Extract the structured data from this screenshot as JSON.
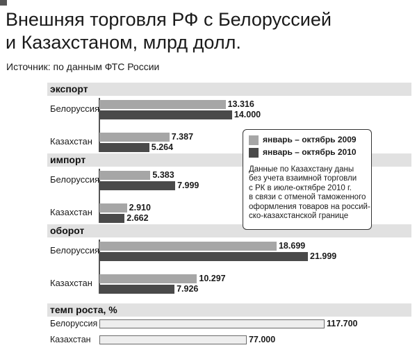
{
  "title_lines": [
    "Внешняя торговля РФ с Белоруссией",
    "и Казахстаном, млрд долл."
  ],
  "source": "Источник: по данным ФТС России",
  "colors": {
    "s2009": "#a6a6a6",
    "s2010": "#4a4a4a",
    "rate_fill": "#eeeeee",
    "header_bg": "#e1e1e1"
  },
  "legend": {
    "items": [
      "январь – октябрь 2009",
      "январь – октябрь 2010"
    ],
    "note_lines": [
      "Данные по Казахстану даны",
      "без учета взаимной торговли",
      "с РК в июле-октябре 2010 г.",
      "в связи с отменой таможенного",
      "оформления товаров на россий-",
      "ско-казахстанской границе"
    ]
  },
  "chart_data": {
    "type": "bar",
    "orientation": "horizontal",
    "title": "Внешняя торговля РФ с Белоруссией и Казахстаном, млрд долл.",
    "series_names": [
      "январь – октябрь 2009",
      "январь – октябрь 2010"
    ],
    "sections": [
      {
        "name": "экспорт",
        "categories": [
          "Белоруссия",
          "Казахстан"
        ],
        "series": [
          {
            "name": "январь – октябрь 2009",
            "values": [
              13.316,
              7.387
            ],
            "labels": [
              "13.316",
              "7.387"
            ]
          },
          {
            "name": "январь – октябрь 2010",
            "values": [
              14.0,
              5.264
            ],
            "labels": [
              "14.000",
              "5.264"
            ]
          }
        ]
      },
      {
        "name": "импорт",
        "categories": [
          "Белоруссия",
          "Казахстан"
        ],
        "series": [
          {
            "name": "январь – октябрь 2009",
            "values": [
              5.383,
              2.91
            ],
            "labels": [
              "5.383",
              "2.910"
            ]
          },
          {
            "name": "январь – октябрь 2010",
            "values": [
              7.999,
              2.662
            ],
            "labels": [
              "7.999",
              "2.662"
            ]
          }
        ]
      },
      {
        "name": "оборот",
        "categories": [
          "Белоруссия",
          "Казахстан"
        ],
        "series": [
          {
            "name": "январь – октябрь 2009",
            "values": [
              18.699,
              10.297
            ],
            "labels": [
              "18.699",
              "10.297"
            ]
          },
          {
            "name": "январь – октябрь 2010",
            "values": [
              21.999,
              7.926
            ],
            "labels": [
              "21.999",
              "7.926"
            ]
          }
        ]
      },
      {
        "name": "темп роста, %",
        "categories": [
          "Белоруссия",
          "Казахстан"
        ],
        "series": [
          {
            "name": "темп роста, %",
            "values": [
              117.7,
              77.0
            ],
            "labels": [
              "117.700",
              "77.000"
            ]
          }
        ]
      }
    ]
  }
}
